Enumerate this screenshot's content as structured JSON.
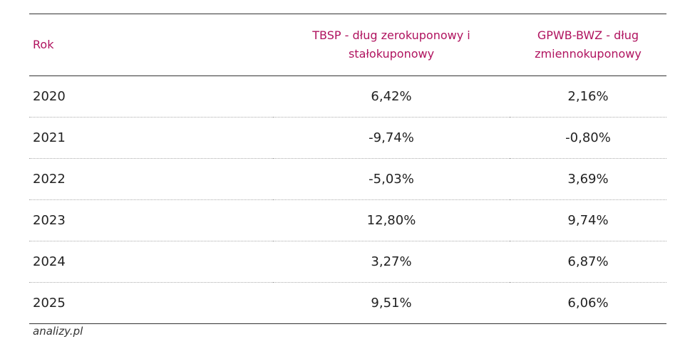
{
  "table": {
    "header": [
      "Rok",
      "TBSP - dług zerokuponowy i stałokuponowy",
      "GPWB-BWZ - dług zmiennokuponowy"
    ],
    "rows": [
      [
        "2020",
        "6,42%",
        "2,16%"
      ],
      [
        "2021",
        "-9,74%",
        "-0,80%"
      ],
      [
        "2022",
        "-5,03%",
        "3,69%"
      ],
      [
        "2023",
        "12,80%",
        "9,74%"
      ],
      [
        "2024",
        "3,27%",
        "6,87%"
      ],
      [
        "2025",
        "9,51%",
        "6,06%"
      ]
    ]
  },
  "source": "analizy.pl"
}
